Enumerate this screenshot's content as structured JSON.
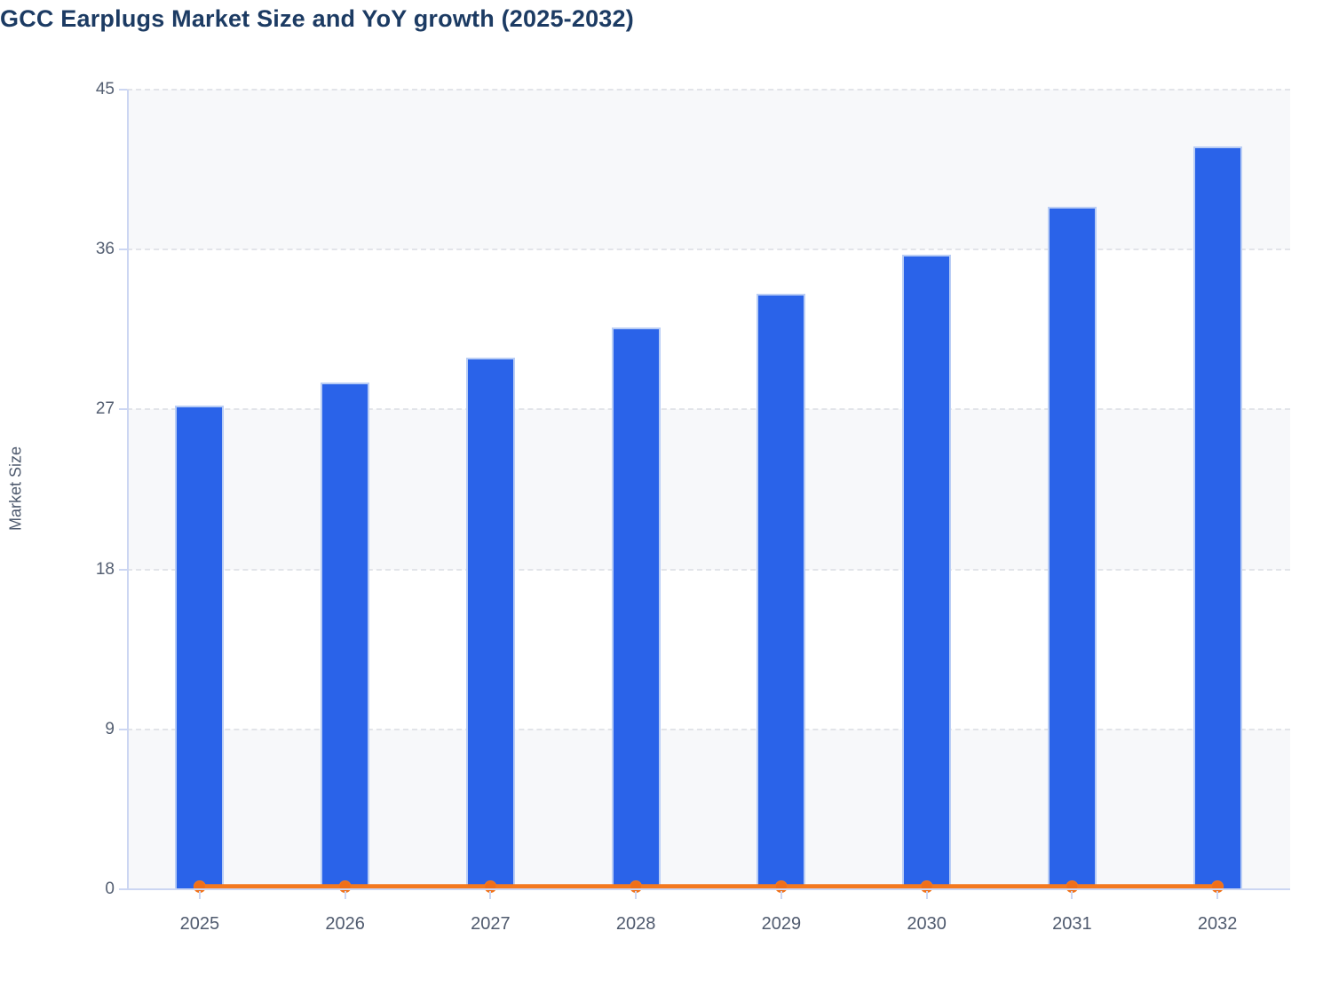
{
  "page": {
    "title": "GCC Earplugs Market Size and YoY growth (2025-2032)"
  },
  "chart_data": {
    "type": "bar",
    "title": "GCC Earplugs Market Size and YoY growth (2025-2032)",
    "xlabel": "",
    "ylabel": "Market Size",
    "categories": [
      "2025",
      "2026",
      "2027",
      "2028",
      "2029",
      "2030",
      "2031",
      "2032"
    ],
    "series": [
      {
        "name": "Market Size",
        "type": "bar",
        "color": "#2a63e9",
        "values": [
          27.2,
          28.5,
          29.9,
          31.6,
          33.5,
          35.7,
          38.4,
          41.8
        ]
      },
      {
        "name": "YoY growth",
        "type": "line",
        "color": "#f4791f",
        "values": [
          0,
          0,
          0,
          0,
          0,
          0,
          0,
          0
        ]
      }
    ],
    "ylim": [
      0,
      45
    ],
    "yticks": [
      0,
      9,
      18,
      27,
      36,
      45
    ],
    "grid": "horizontal-dashed",
    "legend": "none",
    "colors": {
      "bar_fill": "#2a63e9",
      "bar_border": "#b9cdf5",
      "line": "#f4791f",
      "marker": "#ef6f1a",
      "band_gray": "#f7f8fa",
      "gridline": "#e2e4e9",
      "axis_line": "#ccd6f2",
      "axis_text": "#545f72",
      "title_text": "#1c3b63"
    }
  }
}
